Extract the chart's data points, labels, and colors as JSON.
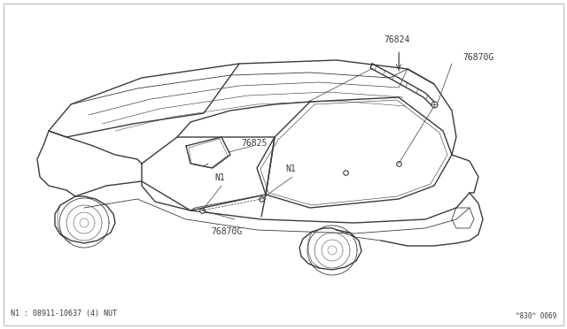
{
  "bg_color": "#ffffff",
  "line_color": "#3a3a3a",
  "text_color": "#3a3a3a",
  "fig_width": 6.4,
  "fig_height": 3.72,
  "dpi": 100,
  "border_color": "#999999",
  "footnote": "N1 : 08911-10637 (4) NUT",
  "diagram_id": "^830^ 0069",
  "label_76824": "76824",
  "label_76870G": "76870G",
  "label_76825": "76825",
  "label_N1": "N1"
}
